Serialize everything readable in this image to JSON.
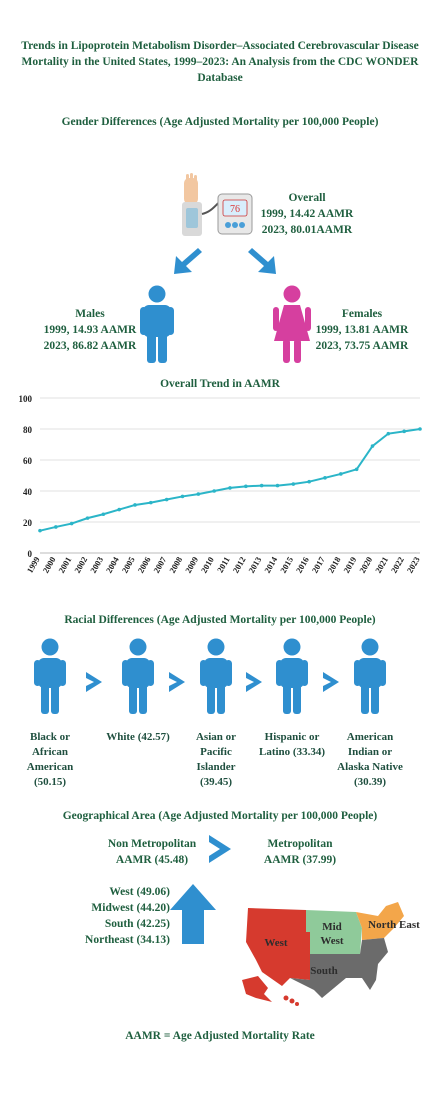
{
  "title": "Trends in Lipoprotein Metabolism Disorder–Associated Cerebrovascular Disease Mortality in the United States, 1999–2023: An Analysis from the CDC WONDER Database",
  "gender": {
    "heading": "Gender Differences (Age Adjusted Mortality per 100,000 People)",
    "overall": {
      "label": "Overall",
      "line1": "1999, 14.42 AAMR",
      "line2": "2023, 80.01AAMR"
    },
    "monitor_reading": "76",
    "males": {
      "label": "Males",
      "line1": "1999, 14.93 AAMR",
      "line2": "2023, 86.82 AAMR"
    },
    "females": {
      "label": "Females",
      "line1": "1999, 13.81 AAMR",
      "line2": "2023, 73.75 AAMR"
    }
  },
  "chart_data": {
    "type": "line",
    "title": "Overall Trend in AAMR",
    "x": [
      "1999",
      "2000",
      "2001",
      "2002",
      "2003",
      "2004",
      "2005",
      "2006",
      "2007",
      "2008",
      "2009",
      "2010",
      "2011",
      "2012",
      "2013",
      "2014",
      "2015",
      "2016",
      "2017",
      "2018",
      "2019",
      "2020",
      "2021",
      "2022",
      "2023"
    ],
    "series": [
      {
        "values": [
          14.4,
          16.8,
          19.0,
          22.5,
          25.0,
          28.0,
          31.0,
          32.5,
          34.5,
          36.5,
          38.0,
          40.0,
          42.0,
          43.0,
          43.5,
          43.5,
          44.5,
          46.0,
          48.5,
          51.0,
          54.0,
          69.0,
          77.0,
          78.5,
          80.0
        ]
      }
    ],
    "ylim": [
      0,
      100
    ],
    "yticks": [
      0,
      20,
      40,
      60,
      80,
      100
    ],
    "grid": true,
    "color": "#2bb5c8"
  },
  "race": {
    "heading": "Racial Differences (Age Adjusted Mortality per 100,000 People)",
    "groups": [
      {
        "label": "Black or African American (50.15)"
      },
      {
        "label": "White (42.57)"
      },
      {
        "label": "Asian or Pacific Islander (39.45)"
      },
      {
        "label": "Hispanic or Latino (33.34)"
      },
      {
        "label": "American Indian or Alaska Native (30.39)"
      }
    ]
  },
  "geo": {
    "heading": "Geographical Area (Age Adjusted Mortality per 100,000 People)",
    "nonmetro_line1": "Non Metropolitan",
    "nonmetro_line2": "AAMR (45.48)",
    "metro_line1": "Metropolitan",
    "metro_line2": "AAMR (37.99)",
    "regions": [
      "West (49.06)",
      "Midwest (44.20)",
      "South (42.25)",
      "Northeast (34.13)"
    ],
    "map_labels": {
      "west": "West",
      "midwest_1": "Mid",
      "midwest_2": "West",
      "northeast": "North East",
      "south": "South"
    }
  },
  "colors": {
    "text": "#1f5f3f",
    "icon_blue": "#2f8fcf",
    "female": "#d63f9f",
    "line": "#2bb5c8",
    "west": "#d63a2e",
    "midwest": "#8fca9a",
    "northeast": "#f3a64a",
    "south": "#6b6b6b"
  },
  "footer": "AAMR = Age Adjusted Mortality Rate"
}
